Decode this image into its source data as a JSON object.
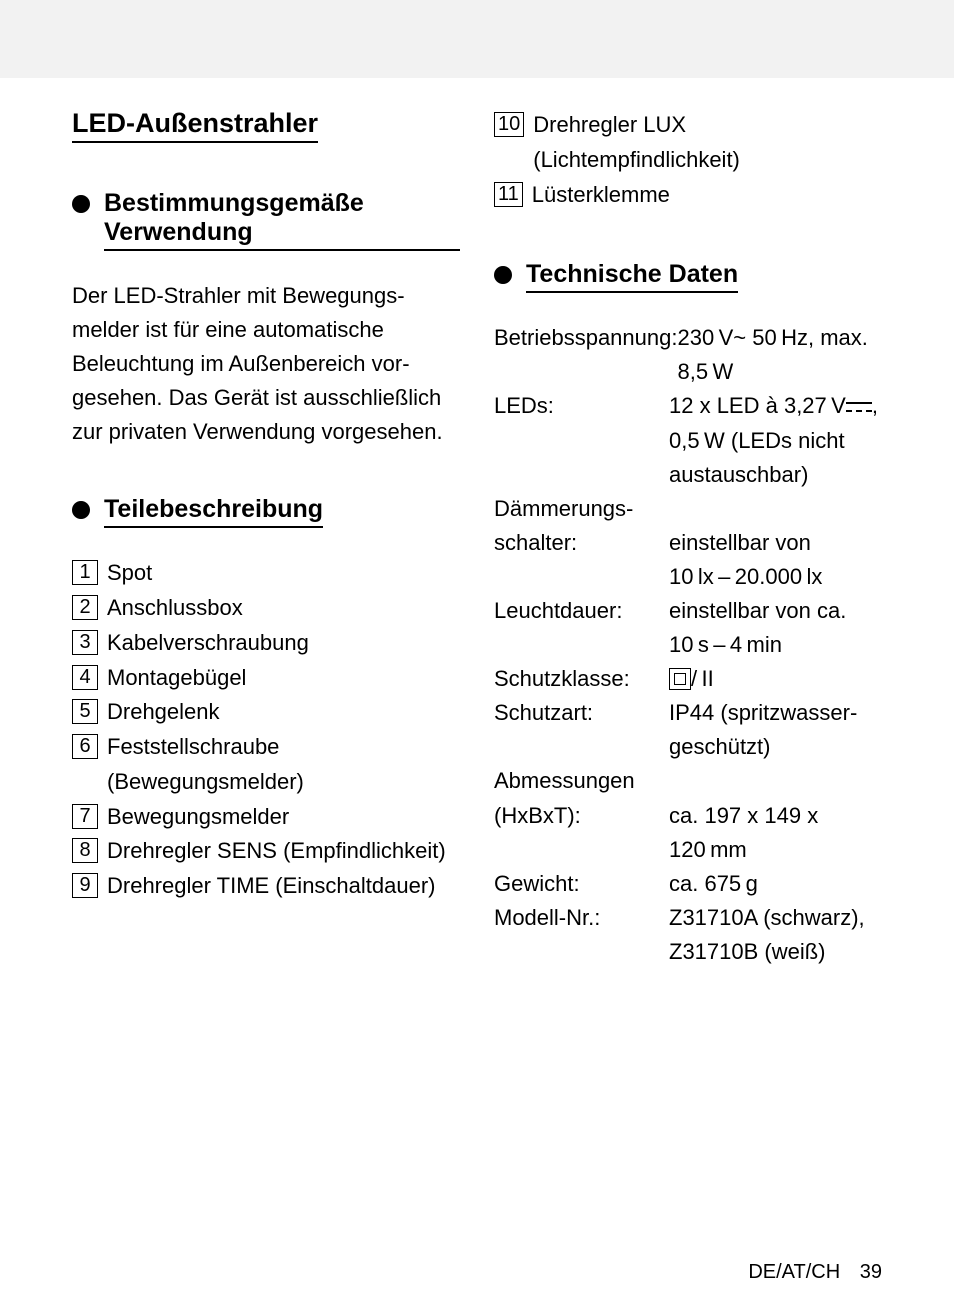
{
  "title": "LED-Außenstrahler",
  "section_usage_heading": "Bestimmungsgemäße Verwendung",
  "usage_body": "Der LED-Strahler mit Bewegungs­melder ist für eine automatische Beleuchtung im Außenbereich vor­gesehen. Das Gerät ist ausschließ­lich zur privaten Verwendung vorgesehen.",
  "section_parts_heading": "Teilebeschreibung",
  "parts": [
    {
      "n": "1",
      "label": "Spot"
    },
    {
      "n": "2",
      "label": "Anschlussbox"
    },
    {
      "n": "3",
      "label": "Kabelverschraubung"
    },
    {
      "n": "4",
      "label": "Montagebügel"
    },
    {
      "n": "5",
      "label": "Drehgelenk"
    },
    {
      "n": "6",
      "label": "Feststellschraube (Bewegungsmelder)"
    },
    {
      "n": "7",
      "label": "Bewegungsmelder"
    },
    {
      "n": "8",
      "label": "Drehregler SENS (Empfindlichkeit)"
    },
    {
      "n": "9",
      "label": "Drehregler TIME (Einschaltdauer)"
    }
  ],
  "parts_right": [
    {
      "n": "10",
      "label": "Drehregler LUX (Lichtempfindlichkeit)"
    },
    {
      "n": "11",
      "label": "Lüsterklemme"
    }
  ],
  "section_tech_heading": "Technische Daten",
  "tech": {
    "betriebsspannung_label": "Betriebsspannung:",
    "betriebsspannung_value": "230 V~ 50 Hz, max. 8,5 W",
    "leds_label": "LEDs:",
    "leds_value_1": "12 x LED à 3,27 V",
    "leds_value_2": ", 0,5 W (LEDs nicht austauschbar)",
    "daemmerung_label": "Dämmerungs­schalter:",
    "daemmerung_value": "einstellbar von 10 lx – 20.000 lx",
    "leuchtdauer_label": "Leuchtdauer:",
    "leuchtdauer_value": "einstellbar von ca. 10 s – 4 min",
    "schutzklasse_label": "Schutzklasse:",
    "schutzklasse_suffix": "/ II",
    "schutzart_label": "Schutzart:",
    "schutzart_value": "IP44 (spritzwasser­geschützt)",
    "abmessungen_label": "Abmessungen (HxBxT):",
    "abmessungen_value": "ca. 197 x 149 x 120 mm",
    "gewicht_label": "Gewicht:",
    "gewicht_value": "ca. 675 g",
    "modell_label": "Modell-Nr.:",
    "modell_value": "Z31710A (schwarz), Z31710B (weiß)"
  },
  "footer_region": "DE/AT/CH",
  "footer_page": "39"
}
